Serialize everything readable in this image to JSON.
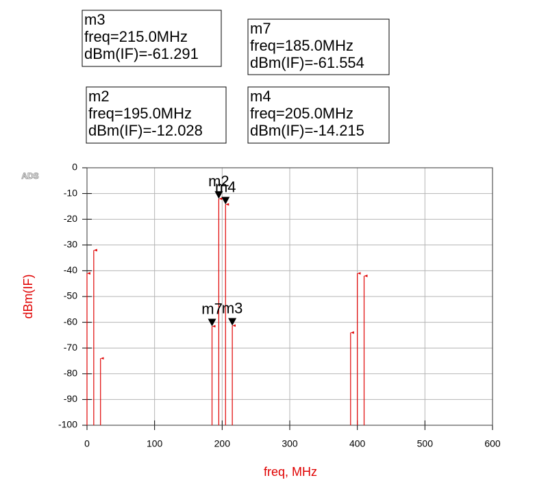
{
  "logo": "ADS",
  "chart_data": {
    "type": "stem",
    "xlabel": "freq, MHz",
    "ylabel": "dBm(IF)",
    "x": [
      0,
      10,
      20,
      185,
      195,
      205,
      215,
      390,
      400,
      410
    ],
    "series": [
      {
        "color": "#e00000",
        "values": [
          -41,
          -32,
          -74,
          -61.554,
          -12.028,
          -14.215,
          -61.291,
          -64,
          -41,
          -42
        ]
      }
    ],
    "xlim": [
      0,
      600
    ],
    "xticks": [
      0,
      100,
      200,
      300,
      400,
      500,
      600
    ],
    "ylim": [
      -100,
      0
    ],
    "yticks": [
      0,
      -10,
      -20,
      -30,
      -40,
      -50,
      -60,
      -70,
      -80,
      -90,
      -100
    ],
    "grid": true,
    "markers": [
      {
        "name": "m3",
        "freq": 215,
        "value": -61.291,
        "freq_label": "freq=215.0MHz",
        "value_label": "dBm(IF)=-61.291"
      },
      {
        "name": "m7",
        "freq": 185,
        "value": -61.554,
        "freq_label": "freq=185.0MHz",
        "value_label": "dBm(IF)=-61.554"
      },
      {
        "name": "m2",
        "freq": 195,
        "value": -12.028,
        "freq_label": "freq=195.0MHz",
        "value_label": "dBm(IF)=-12.028"
      },
      {
        "name": "m4",
        "freq": 205,
        "value": -14.215,
        "freq_label": "freq=205.0MHz",
        "value_label": "dBm(IF)=-14.215"
      }
    ]
  }
}
